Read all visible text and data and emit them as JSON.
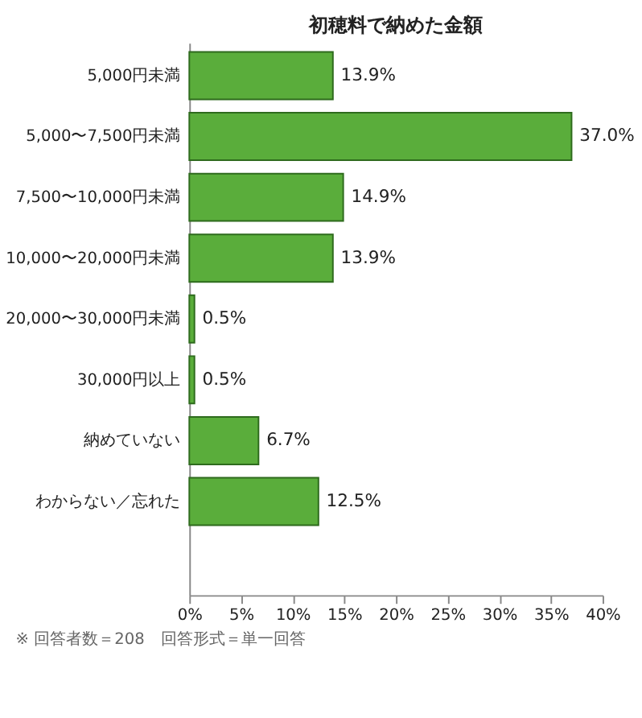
{
  "chart_data": {
    "type": "bar",
    "orientation": "horizontal",
    "title": "初穂料で納めた金額",
    "categories": [
      "5,000円未満",
      "5,000〜7,500円未満",
      "7,500〜10,000円未満",
      "10,000〜20,000円未満",
      "20,000〜30,000円未満",
      "30,000円以上",
      "納めていない",
      "わからない／忘れた"
    ],
    "values": [
      13.9,
      37.0,
      14.9,
      13.9,
      0.5,
      0.5,
      6.7,
      12.5
    ],
    "value_labels": [
      "13.9%",
      "37.0%",
      "14.9%",
      "13.9%",
      "0.5%",
      "0.5%",
      "6.7%",
      "12.5%"
    ],
    "color": "#5aad3b",
    "xlim": [
      0,
      40
    ],
    "xticks": [
      {
        "value": 0,
        "label": "0%"
      },
      {
        "value": 5,
        "label": "5%"
      },
      {
        "value": 10,
        "label": "10%"
      },
      {
        "value": 15,
        "label": "15%"
      },
      {
        "value": 20,
        "label": "20%"
      },
      {
        "value": 25,
        "label": "25%"
      },
      {
        "value": 30,
        "label": "30%"
      },
      {
        "value": 35,
        "label": "35%"
      },
      {
        "value": 40,
        "label": "40%"
      }
    ],
    "grid": false,
    "legend": false,
    "annotations": [
      "※ 回答者数＝208　回答形式＝単一回答"
    ]
  }
}
